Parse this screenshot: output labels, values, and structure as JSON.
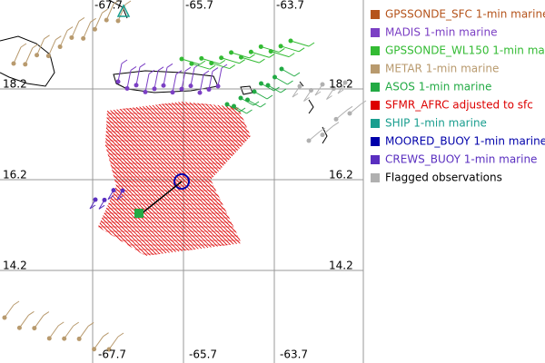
{
  "map": {
    "lon_labels": [
      "-67.7",
      "-65.7",
      "-63.7"
    ],
    "lat_labels": [
      "18.2",
      "16.2",
      "14.2"
    ]
  },
  "legend": {
    "items": [
      {
        "label": "GPSSONDE_SFC 1-min marine",
        "color": "#b5541c"
      },
      {
        "label": "MADIS 1-min marine",
        "color": "#7b3fc4"
      },
      {
        "label": "GPSSONDE_WL150 1-min marine",
        "color": "#33bb33"
      },
      {
        "label": "METAR 1-min marine",
        "color": "#b89a6e"
      },
      {
        "label": "ASOS 1-min marine",
        "color": "#22aa44"
      },
      {
        "label": "SFMR_AFRC adjusted to sfc",
        "color": "#dd0000"
      },
      {
        "label": "SHIP 1-min marine",
        "color": "#1a9e8f"
      },
      {
        "label": "MOORED_BUOY 1-min marine",
        "color": "#0000aa"
      },
      {
        "label": "CREWS_BUOY 1-min marine",
        "color": "#5a2fc0"
      },
      {
        "label": "Flagged observations",
        "color": "#b0b0b0"
      }
    ]
  }
}
